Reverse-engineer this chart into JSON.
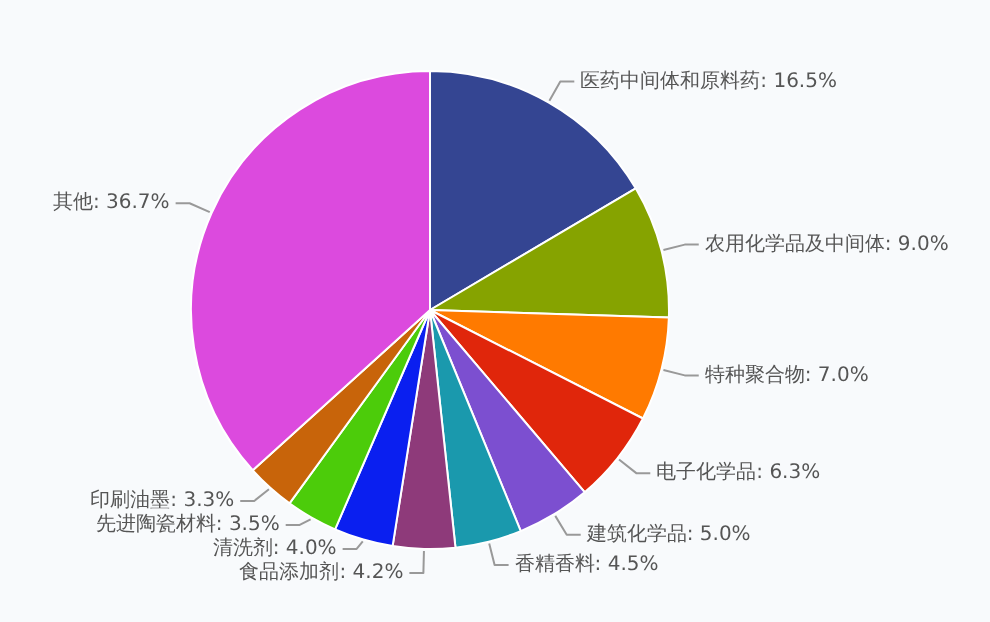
{
  "chart_data": {
    "type": "pie",
    "categories": [
      "医药中间体和原料药",
      "农用化学品及中间体",
      "特种聚合物",
      "电子化学品",
      "建筑化学品",
      "香精香料",
      "食品添加剂",
      "清洗剂",
      "先进陶瓷材料",
      "印刷油墨",
      "其他"
    ],
    "values": [
      16.5,
      9.0,
      7.0,
      6.3,
      5.0,
      4.5,
      4.2,
      4.0,
      3.5,
      3.3,
      36.7
    ],
    "value_labels": [
      "16.5%",
      "9.0%",
      "7.0%",
      "6.3%",
      "5.0%",
      "4.5%",
      "4.2%",
      "4.0%",
      "3.5%",
      "3.3%",
      "36.7%"
    ],
    "colors": [
      "#344592",
      "#86a300",
      "#ff7a00",
      "#e0260b",
      "#7c4fd0",
      "#1a99ad",
      "#8e3a7a",
      "#0a1ff0",
      "#4ccc0a",
      "#c8640a",
      "#dc4ade"
    ]
  }
}
